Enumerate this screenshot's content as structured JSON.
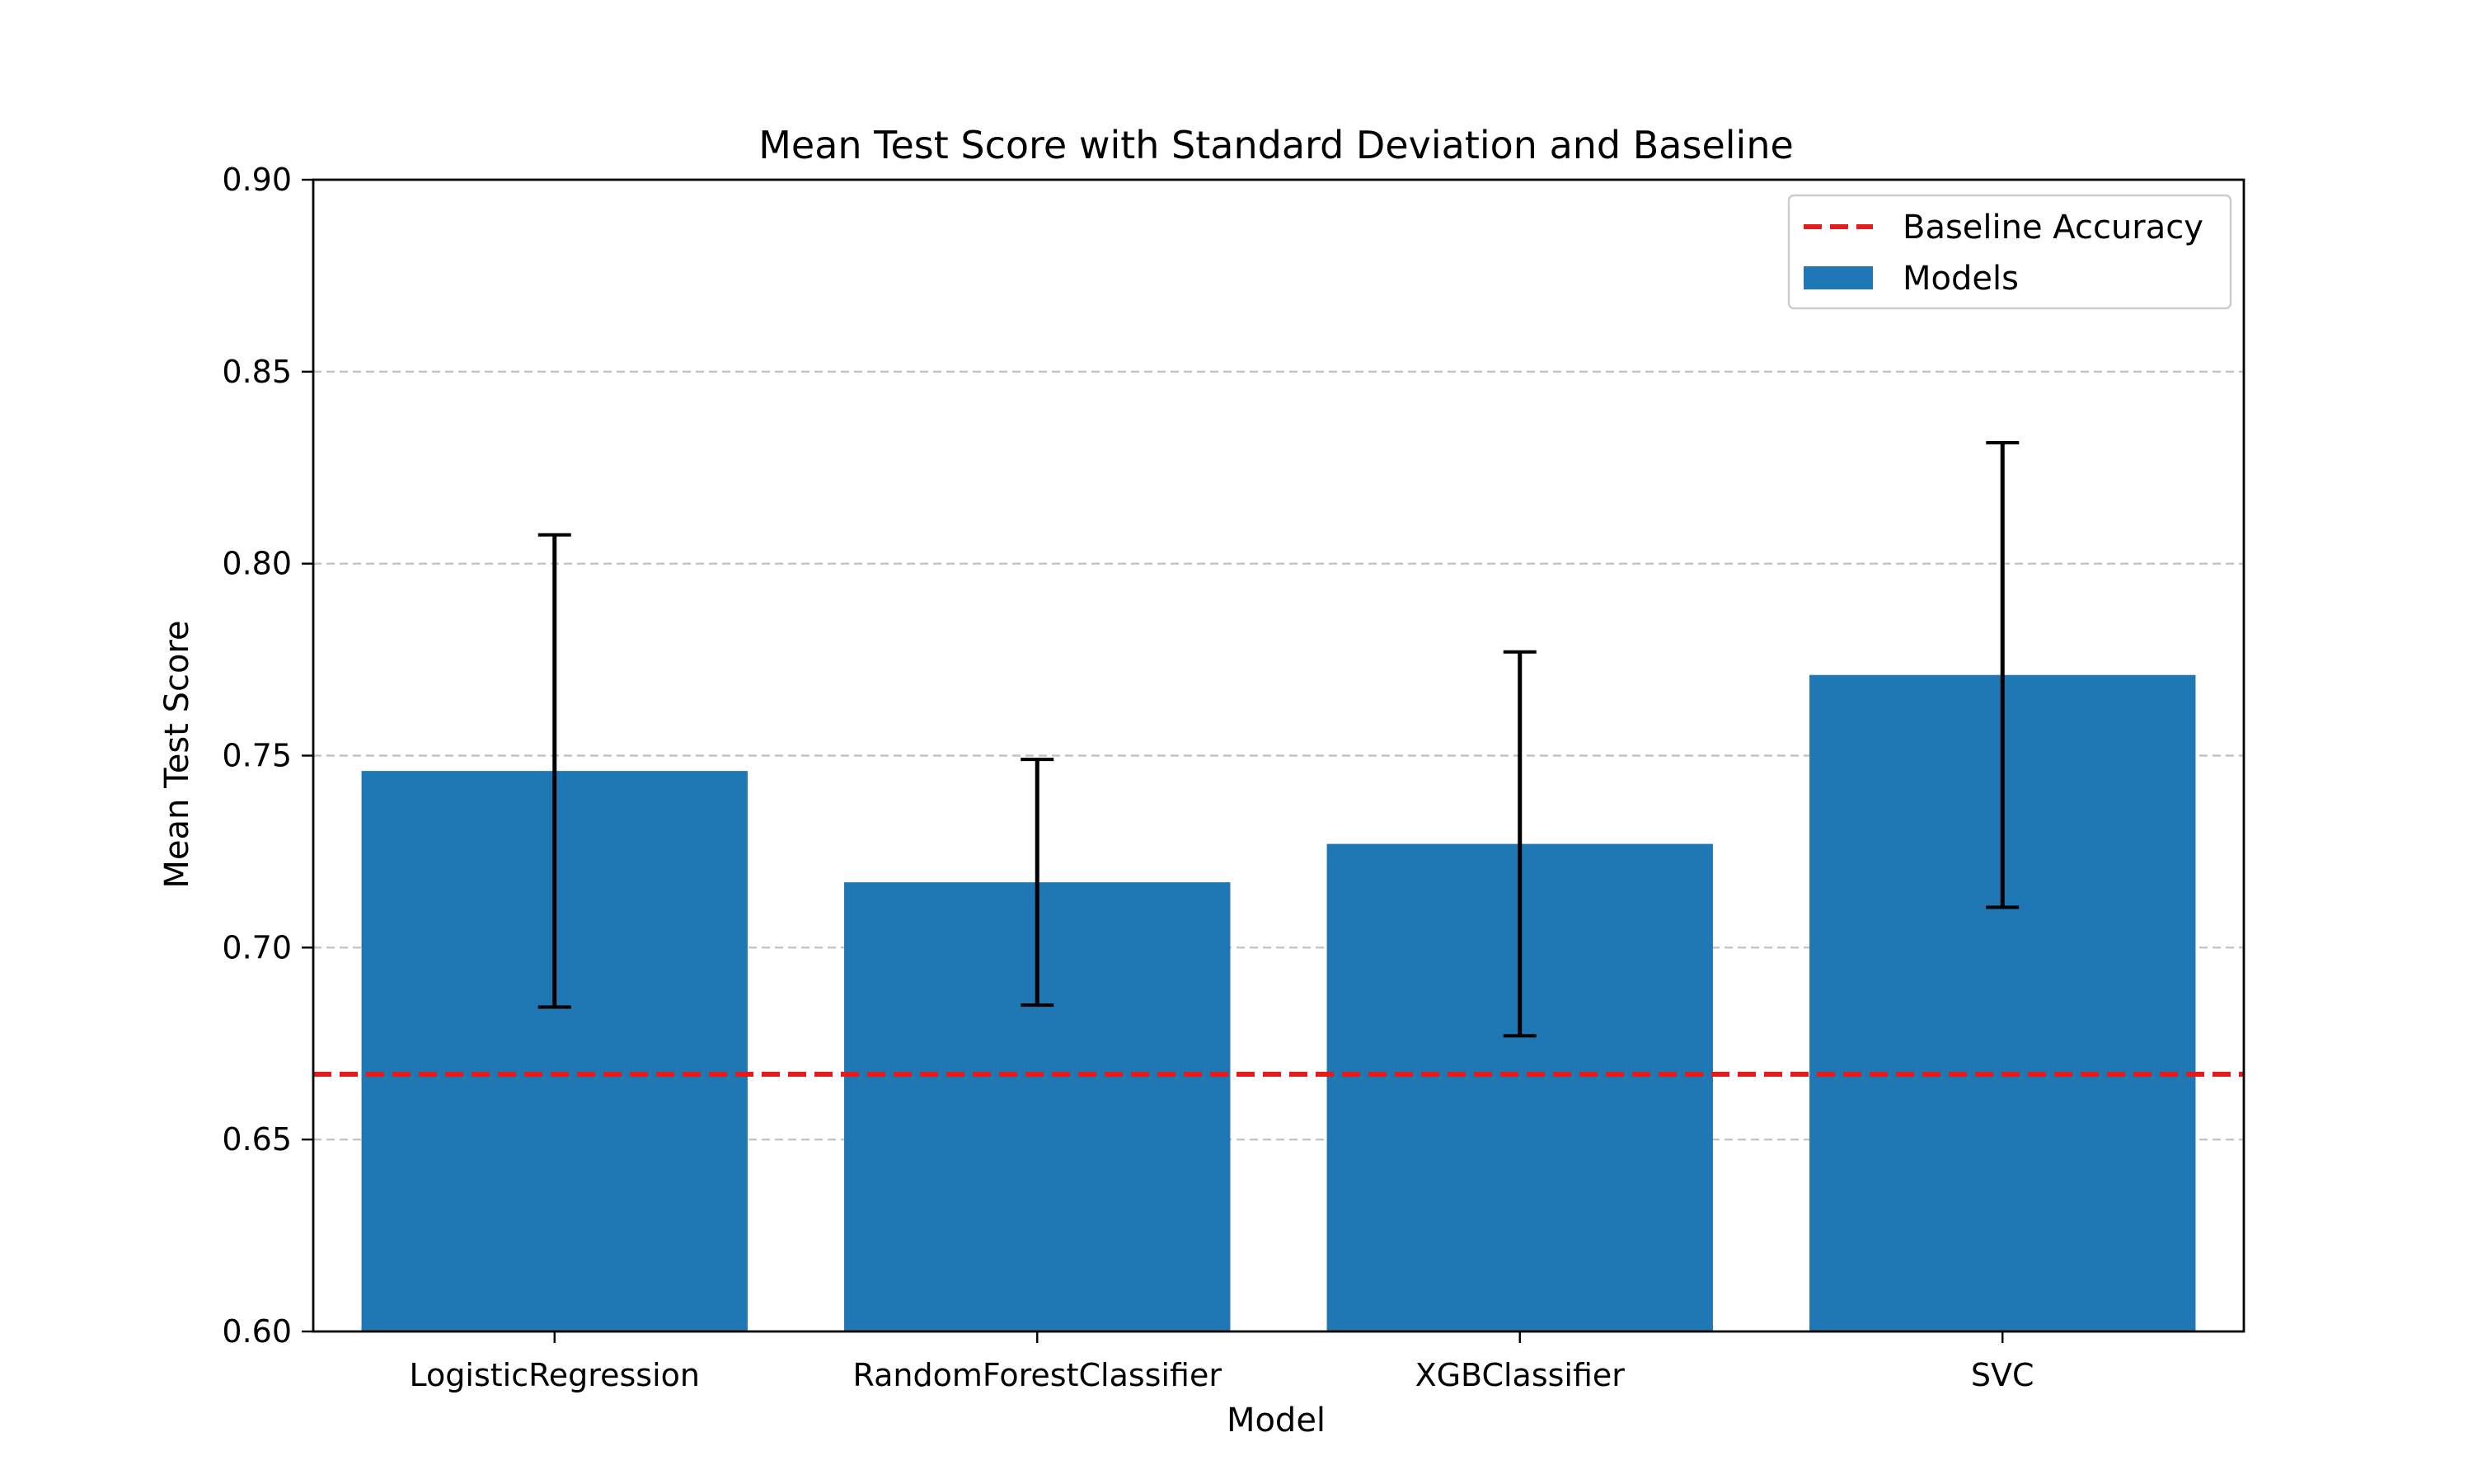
{
  "chart_data": {
    "type": "bar",
    "title": "Mean Test Score with Standard Deviation and Baseline",
    "xlabel": "Model",
    "ylabel": "Mean Test Score",
    "categories": [
      "LogisticRegression",
      "RandomForestClassifier",
      "XGBClassifier",
      "SVC"
    ],
    "series": [
      {
        "name": "Models",
        "values": [
          0.746,
          0.717,
          0.727,
          0.771
        ],
        "error": [
          0.0615,
          0.032,
          0.05,
          0.0605
        ],
        "color": "#1f77b4"
      }
    ],
    "baseline": {
      "name": "Baseline Accuracy",
      "value": 0.667,
      "color": "#e41a1c",
      "style": "dashed"
    },
    "ylim": [
      0.6,
      0.9
    ],
    "yticks": [
      0.6,
      0.65,
      0.7,
      0.75,
      0.8,
      0.85,
      0.9
    ],
    "ytick_labels": [
      "0.60",
      "0.65",
      "0.70",
      "0.75",
      "0.80",
      "0.85",
      "0.90"
    ],
    "grid": "y",
    "legend_position": "top-right",
    "legend": [
      {
        "label": "Baseline Accuracy",
        "kind": "line",
        "color": "#e41a1c"
      },
      {
        "label": "Models",
        "kind": "patch",
        "color": "#1f77b4"
      }
    ]
  }
}
